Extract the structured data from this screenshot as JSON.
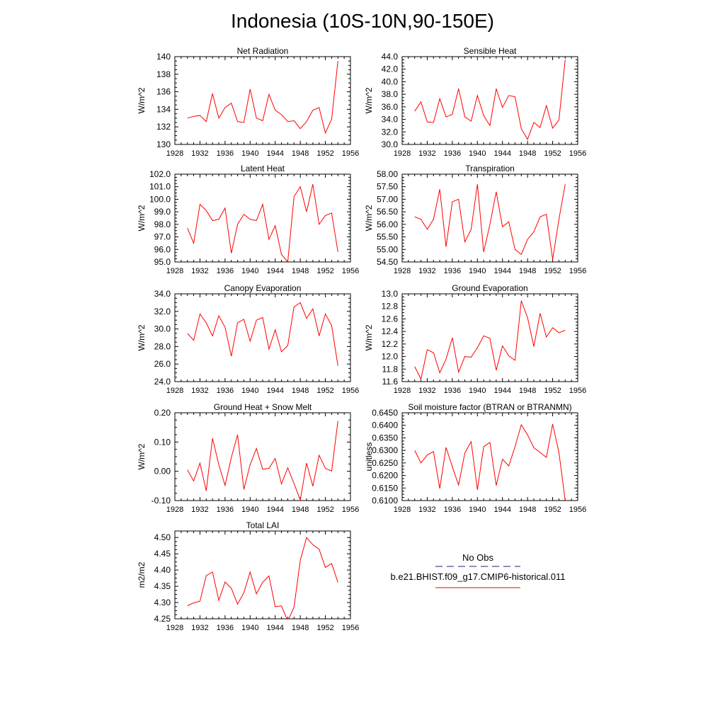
{
  "page": {
    "title": "Indonesia (10S-10N,90-150E)"
  },
  "legend": {
    "obs_label": "No Obs",
    "model_label": "b.e21.BHIST.f09_g17.CMIP6-historical.011",
    "obs_color": "#1c1c7a",
    "model_color": "#ff0000"
  },
  "chart_data": [
    {
      "type": "line",
      "title": "Net Radiation",
      "ylabel": "W/m^2",
      "xlim": [
        1928,
        1956
      ],
      "ylim": [
        130,
        140
      ],
      "xticks": [
        "1928",
        "1932",
        "1936",
        "1940",
        "1944",
        "1948",
        "1952",
        "1956"
      ],
      "yticks": [
        "130",
        "132",
        "134",
        "136",
        "138",
        "140"
      ],
      "x": [
        1930,
        1931,
        1932,
        1933,
        1934,
        1935,
        1936,
        1937,
        1938,
        1939,
        1940,
        1941,
        1942,
        1943,
        1944,
        1945,
        1946,
        1947,
        1948,
        1949,
        1950,
        1951,
        1952,
        1953,
        1954
      ],
      "series": [
        {
          "name": "b.e21.BHIST.f09_g17.CMIP6-historical.011",
          "values": [
            133.0,
            133.2,
            133.3,
            132.6,
            135.8,
            133.0,
            134.2,
            134.7,
            132.6,
            132.5,
            136.3,
            133.0,
            132.7,
            135.7,
            133.9,
            133.4,
            132.6,
            132.7,
            131.8,
            132.6,
            133.9,
            134.2,
            131.3,
            132.9,
            139.5
          ]
        }
      ]
    },
    {
      "type": "line",
      "title": "Sensible Heat",
      "ylabel": "W/m^2",
      "xlim": [
        1928,
        1956
      ],
      "ylim": [
        30,
        44
      ],
      "xticks": [
        "1928",
        "1932",
        "1936",
        "1940",
        "1944",
        "1948",
        "1952",
        "1956"
      ],
      "yticks": [
        "30.0",
        "32.0",
        "34.0",
        "36.0",
        "38.0",
        "40.0",
        "42.0",
        "44.0"
      ],
      "x": [
        1930,
        1931,
        1932,
        1933,
        1934,
        1935,
        1936,
        1937,
        1938,
        1939,
        1940,
        1941,
        1942,
        1943,
        1944,
        1945,
        1946,
        1947,
        1948,
        1949,
        1950,
        1951,
        1952,
        1953,
        1954
      ],
      "series": [
        {
          "name": "b.e21.BHIST.f09_g17.CMIP6-historical.011",
          "values": [
            35.3,
            36.8,
            33.6,
            33.5,
            37.3,
            34.4,
            34.8,
            38.9,
            34.4,
            33.7,
            37.8,
            34.6,
            33.0,
            38.9,
            35.9,
            37.8,
            37.6,
            32.5,
            30.8,
            33.5,
            32.7,
            36.2,
            32.6,
            33.9,
            43.5
          ]
        }
      ]
    },
    {
      "type": "line",
      "title": "Latent Heat",
      "ylabel": "W/m^2",
      "xlim": [
        1928,
        1956
      ],
      "ylim": [
        95,
        102
      ],
      "xticks": [
        "1928",
        "1932",
        "1936",
        "1940",
        "1944",
        "1948",
        "1952",
        "1956"
      ],
      "yticks": [
        "95.0",
        "96.0",
        "97.0",
        "98.0",
        "99.0",
        "100.0",
        "101.0",
        "102.0"
      ],
      "x": [
        1930,
        1931,
        1932,
        1933,
        1934,
        1935,
        1936,
        1937,
        1938,
        1939,
        1940,
        1941,
        1942,
        1943,
        1944,
        1945,
        1946,
        1947,
        1948,
        1949,
        1950,
        1951,
        1952,
        1953,
        1954
      ],
      "series": [
        {
          "name": "b.e21.BHIST.f09_g17.CMIP6-historical.011",
          "values": [
            97.7,
            96.5,
            99.6,
            99.1,
            98.3,
            98.4,
            99.3,
            95.7,
            98.0,
            98.8,
            98.4,
            98.3,
            99.6,
            96.8,
            97.9,
            95.6,
            95.0,
            100.2,
            101.0,
            99.0,
            101.2,
            98.0,
            98.7,
            98.9,
            95.8
          ]
        }
      ]
    },
    {
      "type": "line",
      "title": "Transpiration",
      "ylabel": "W/m^2",
      "xlim": [
        1928,
        1956
      ],
      "ylim": [
        54.5,
        58.0
      ],
      "xticks": [
        "1928",
        "1932",
        "1936",
        "1940",
        "1944",
        "1948",
        "1952",
        "1956"
      ],
      "yticks": [
        "54.50",
        "55.00",
        "55.50",
        "56.00",
        "56.50",
        "57.00",
        "57.50",
        "58.00"
      ],
      "x": [
        1930,
        1931,
        1932,
        1933,
        1934,
        1935,
        1936,
        1937,
        1938,
        1939,
        1940,
        1941,
        1942,
        1943,
        1944,
        1945,
        1946,
        1947,
        1948,
        1949,
        1950,
        1951,
        1952,
        1953,
        1954
      ],
      "series": [
        {
          "name": "b.e21.BHIST.f09_g17.CMIP6-historical.011",
          "values": [
            56.3,
            56.2,
            55.8,
            56.2,
            57.4,
            55.1,
            56.9,
            57.0,
            55.3,
            55.8,
            57.6,
            54.9,
            56.0,
            57.3,
            55.9,
            56.1,
            55.0,
            54.8,
            55.4,
            55.7,
            56.3,
            56.4,
            54.6,
            56.2,
            57.6
          ]
        }
      ]
    },
    {
      "type": "line",
      "title": "Canopy Evaporation",
      "ylabel": "W/m^2",
      "xlim": [
        1928,
        1956
      ],
      "ylim": [
        24,
        34
      ],
      "xticks": [
        "1928",
        "1932",
        "1936",
        "1940",
        "1944",
        "1948",
        "1952",
        "1956"
      ],
      "yticks": [
        "24.0",
        "26.0",
        "28.0",
        "30.0",
        "32.0",
        "34.0"
      ],
      "x": [
        1930,
        1931,
        1932,
        1933,
        1934,
        1935,
        1936,
        1937,
        1938,
        1939,
        1940,
        1941,
        1942,
        1943,
        1944,
        1945,
        1946,
        1947,
        1948,
        1949,
        1950,
        1951,
        1952,
        1953,
        1954
      ],
      "series": [
        {
          "name": "b.e21.BHIST.f09_g17.CMIP6-historical.011",
          "values": [
            29.5,
            28.7,
            31.7,
            30.7,
            29.2,
            31.5,
            30.2,
            26.9,
            30.7,
            31.1,
            28.6,
            31.0,
            31.3,
            27.7,
            29.9,
            27.4,
            28.1,
            32.5,
            33.0,
            31.2,
            32.3,
            29.2,
            31.7,
            30.4,
            25.8
          ]
        }
      ]
    },
    {
      "type": "line",
      "title": "Ground Evaporation",
      "ylabel": "W/m^2",
      "xlim": [
        1928,
        1956
      ],
      "ylim": [
        11.6,
        13.0
      ],
      "xticks": [
        "1928",
        "1932",
        "1936",
        "1940",
        "1944",
        "1948",
        "1952",
        "1956"
      ],
      "yticks": [
        "11.6",
        "11.8",
        "12.0",
        "12.2",
        "12.4",
        "12.6",
        "12.8",
        "13.0"
      ],
      "x": [
        1930,
        1931,
        1932,
        1933,
        1934,
        1935,
        1936,
        1937,
        1938,
        1939,
        1940,
        1941,
        1942,
        1943,
        1944,
        1945,
        1946,
        1947,
        1948,
        1949,
        1950,
        1951,
        1952,
        1953,
        1954
      ],
      "series": [
        {
          "name": "b.e21.BHIST.f09_g17.CMIP6-historical.011",
          "values": [
            11.84,
            11.64,
            12.11,
            12.06,
            11.74,
            11.96,
            12.3,
            11.75,
            12.0,
            11.99,
            12.14,
            12.33,
            12.29,
            11.78,
            12.17,
            12.01,
            11.94,
            12.89,
            12.62,
            12.16,
            12.69,
            12.31,
            12.46,
            12.38,
            12.42
          ]
        }
      ]
    },
    {
      "type": "line",
      "title": "Ground Heat + Snow Melt",
      "ylabel": "W/m^2",
      "xlim": [
        1928,
        1956
      ],
      "ylim": [
        -0.1,
        0.2
      ],
      "xticks": [
        "1928",
        "1932",
        "1936",
        "1940",
        "1944",
        "1948",
        "1952",
        "1956"
      ],
      "yticks": [
        "-0.10",
        "0.00",
        "0.10",
        "0.20"
      ],
      "x": [
        1930,
        1931,
        1932,
        1933,
        1934,
        1935,
        1936,
        1937,
        1938,
        1939,
        1940,
        1941,
        1942,
        1943,
        1944,
        1945,
        1946,
        1947,
        1948,
        1949,
        1950,
        1951,
        1952,
        1953,
        1954
      ],
      "series": [
        {
          "name": "b.e21.BHIST.f09_g17.CMIP6-historical.011",
          "values": [
            0.005,
            -0.033,
            0.028,
            -0.067,
            0.113,
            0.023,
            -0.048,
            0.047,
            0.125,
            -0.062,
            0.023,
            0.078,
            0.007,
            0.01,
            0.044,
            -0.043,
            0.012,
            -0.042,
            -0.098,
            0.028,
            -0.051,
            0.055,
            0.01,
            0.001,
            0.172
          ]
        }
      ]
    },
    {
      "type": "line",
      "title": "Soil moisture factor (BTRAN or BTRANMN)",
      "ylabel": "unitless",
      "xlim": [
        1928,
        1956
      ],
      "ylim": [
        0.61,
        0.645
      ],
      "xticks": [
        "1928",
        "1932",
        "1936",
        "1940",
        "1944",
        "1948",
        "1952",
        "1956"
      ],
      "yticks": [
        "0.6100",
        "0.6150",
        "0.6200",
        "0.6250",
        "0.6300",
        "0.6350",
        "0.6400",
        "0.6450"
      ],
      "x": [
        1930,
        1931,
        1932,
        1933,
        1934,
        1935,
        1936,
        1937,
        1938,
        1939,
        1940,
        1941,
        1942,
        1943,
        1944,
        1945,
        1946,
        1947,
        1948,
        1949,
        1950,
        1951,
        1952,
        1953,
        1954
      ],
      "series": [
        {
          "name": "b.e21.BHIST.f09_g17.CMIP6-historical.011",
          "values": [
            0.63,
            0.625,
            0.6282,
            0.6295,
            0.6148,
            0.6312,
            0.6235,
            0.6162,
            0.629,
            0.6335,
            0.6143,
            0.6315,
            0.6332,
            0.616,
            0.6265,
            0.6238,
            0.6315,
            0.6402,
            0.6362,
            0.6311,
            0.6292,
            0.6272,
            0.6405,
            0.6292,
            0.61
          ]
        }
      ]
    },
    {
      "type": "line",
      "title": "Total LAI",
      "ylabel": "m2/m2",
      "xlim": [
        1928,
        1956
      ],
      "ylim": [
        4.25,
        4.52
      ],
      "xticks": [
        "1928",
        "1932",
        "1936",
        "1940",
        "1944",
        "1948",
        "1952",
        "1956"
      ],
      "yticks": [
        "4.25",
        "4.30",
        "4.35",
        "4.40",
        "4.45",
        "4.50"
      ],
      "x": [
        1930,
        1931,
        1932,
        1933,
        1934,
        1935,
        1936,
        1937,
        1938,
        1939,
        1940,
        1941,
        1942,
        1943,
        1944,
        1945,
        1946,
        1947,
        1948,
        1949,
        1950,
        1951,
        1952,
        1953,
        1954
      ],
      "series": [
        {
          "name": "b.e21.BHIST.f09_g17.CMIP6-historical.011",
          "values": [
            4.29,
            4.299,
            4.304,
            4.383,
            4.394,
            4.307,
            4.363,
            4.344,
            4.295,
            4.33,
            4.394,
            4.327,
            4.362,
            4.382,
            4.287,
            4.29,
            4.243,
            4.286,
            4.43,
            4.5,
            4.478,
            4.464,
            4.408,
            4.42,
            4.362
          ]
        }
      ]
    }
  ]
}
